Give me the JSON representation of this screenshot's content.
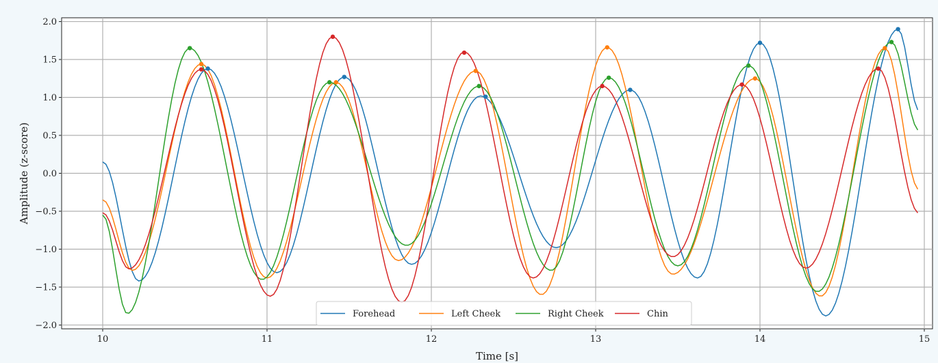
{
  "chart_data": {
    "type": "line",
    "title": "",
    "xlabel": "Time [s]",
    "ylabel": "Amplitude (z-score)",
    "xlim": [
      9.75,
      15.05
    ],
    "ylim": [
      -2.05,
      2.05
    ],
    "xticks": [
      10,
      11,
      12,
      13,
      14,
      15
    ],
    "yticks": [
      2.0,
      1.5,
      1.0,
      0.5,
      0.0,
      -0.5,
      -1.0,
      -1.5,
      -2.0
    ],
    "xtick_labels": [
      "10",
      "11",
      "12",
      "13",
      "14",
      "15"
    ],
    "ytick_labels": [
      "2.0",
      "1.5",
      "1.0",
      "0.5",
      "0.0",
      "−0.5",
      "−1.0",
      "−1.5",
      "−2.0"
    ],
    "grid": true,
    "legend_position": "bottom-center",
    "series": [
      {
        "name": "Forehead",
        "color": "#1f77b4",
        "anchors": [
          [
            10.0,
            0.15
          ],
          [
            10.22,
            -1.42
          ],
          [
            10.64,
            1.38
          ],
          [
            11.06,
            -1.31
          ],
          [
            11.47,
            1.27
          ],
          [
            11.88,
            -1.2
          ],
          [
            12.3,
            1.02
          ],
          [
            12.76,
            -0.98
          ],
          [
            13.21,
            1.1
          ],
          [
            13.62,
            -1.38
          ],
          [
            14.0,
            1.72
          ],
          [
            14.4,
            -1.88
          ],
          [
            14.84,
            1.9
          ],
          [
            14.97,
            0.82
          ]
        ],
        "peaks": [
          [
            10.64,
            1.38
          ],
          [
            11.47,
            1.27
          ],
          [
            12.33,
            1.01
          ],
          [
            13.21,
            1.1
          ],
          [
            14.0,
            1.72
          ],
          [
            14.84,
            1.9
          ]
        ]
      },
      {
        "name": "Left Cheek",
        "color": "#ff7f0e",
        "anchors": [
          [
            10.0,
            -0.35
          ],
          [
            10.18,
            -1.28
          ],
          [
            10.6,
            1.44
          ],
          [
            11.0,
            -1.38
          ],
          [
            11.42,
            1.2
          ],
          [
            11.8,
            -1.15
          ],
          [
            12.27,
            1.35
          ],
          [
            12.67,
            -1.6
          ],
          [
            13.07,
            1.66
          ],
          [
            13.47,
            -1.33
          ],
          [
            13.97,
            1.25
          ],
          [
            14.37,
            -1.62
          ],
          [
            14.76,
            1.65
          ],
          [
            14.97,
            -0.22
          ]
        ],
        "peaks": [
          [
            10.6,
            1.44
          ],
          [
            11.42,
            1.2
          ],
          [
            12.27,
            1.35
          ],
          [
            13.07,
            1.66
          ],
          [
            13.97,
            1.25
          ],
          [
            14.76,
            1.65
          ]
        ]
      },
      {
        "name": "Right Cheek",
        "color": "#2ca02c",
        "anchors": [
          [
            10.0,
            -0.55
          ],
          [
            10.15,
            -1.85
          ],
          [
            10.53,
            1.65
          ],
          [
            10.97,
            -1.4
          ],
          [
            11.38,
            1.2
          ],
          [
            11.85,
            -0.95
          ],
          [
            12.29,
            1.15
          ],
          [
            12.73,
            -1.28
          ],
          [
            13.08,
            1.26
          ],
          [
            13.5,
            -1.22
          ],
          [
            13.93,
            1.42
          ],
          [
            14.35,
            -1.56
          ],
          [
            14.8,
            1.73
          ],
          [
            14.97,
            0.56
          ]
        ],
        "peaks": [
          [
            10.53,
            1.65
          ],
          [
            11.38,
            1.2
          ],
          [
            12.29,
            1.15
          ],
          [
            13.08,
            1.26
          ],
          [
            13.93,
            1.42
          ],
          [
            14.8,
            1.73
          ]
        ]
      },
      {
        "name": "Chin",
        "color": "#d62728",
        "anchors": [
          [
            10.0,
            -0.52
          ],
          [
            10.16,
            -1.26
          ],
          [
            10.6,
            1.37
          ],
          [
            11.02,
            -1.62
          ],
          [
            11.4,
            1.8
          ],
          [
            11.82,
            -1.7
          ],
          [
            12.2,
            1.6
          ],
          [
            12.62,
            -1.38
          ],
          [
            13.04,
            1.15
          ],
          [
            13.47,
            -1.1
          ],
          [
            13.89,
            1.17
          ],
          [
            14.28,
            -1.25
          ],
          [
            14.72,
            1.38
          ],
          [
            14.97,
            -0.53
          ]
        ],
        "peaks": [
          [
            10.6,
            1.37
          ],
          [
            11.4,
            1.8
          ],
          [
            12.2,
            1.59
          ],
          [
            13.04,
            1.15
          ],
          [
            13.89,
            1.17
          ],
          [
            14.72,
            1.38
          ]
        ]
      }
    ]
  }
}
